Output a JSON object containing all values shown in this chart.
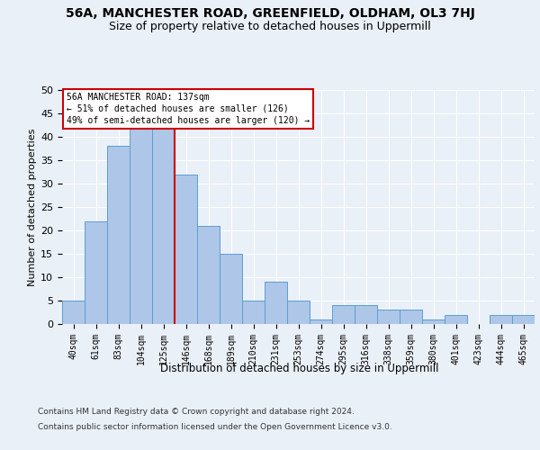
{
  "title1": "56A, MANCHESTER ROAD, GREENFIELD, OLDHAM, OL3 7HJ",
  "title2": "Size of property relative to detached houses in Uppermill",
  "xlabel": "Distribution of detached houses by size in Uppermill",
  "ylabel": "Number of detached properties",
  "categories": [
    "40sqm",
    "61sqm",
    "83sqm",
    "104sqm",
    "125sqm",
    "146sqm",
    "168sqm",
    "189sqm",
    "210sqm",
    "231sqm",
    "253sqm",
    "274sqm",
    "295sqm",
    "316sqm",
    "338sqm",
    "359sqm",
    "380sqm",
    "401sqm",
    "423sqm",
    "444sqm",
    "465sqm"
  ],
  "values": [
    5,
    22,
    38,
    42,
    42,
    32,
    21,
    15,
    5,
    9,
    5,
    1,
    4,
    4,
    3,
    3,
    1,
    2,
    0,
    2,
    2
  ],
  "bar_color": "#aec6e8",
  "bar_edge_color": "#5a9fd4",
  "vline_index": 4.5,
  "vline_color": "#cc0000",
  "annotation_text": "56A MANCHESTER ROAD: 137sqm\n← 51% of detached houses are smaller (126)\n49% of semi-detached houses are larger (120) →",
  "annotation_box_color": "#ffffff",
  "annotation_box_edge_color": "#cc0000",
  "footer1": "Contains HM Land Registry data © Crown copyright and database right 2024.",
  "footer2": "Contains public sector information licensed under the Open Government Licence v3.0.",
  "bg_color": "#eaf0f8",
  "plot_bg_color": "#eaf0f8",
  "grid_color": "#ffffff",
  "ylim": [
    0,
    50
  ],
  "yticks": [
    0,
    5,
    10,
    15,
    20,
    25,
    30,
    35,
    40,
    45,
    50
  ]
}
